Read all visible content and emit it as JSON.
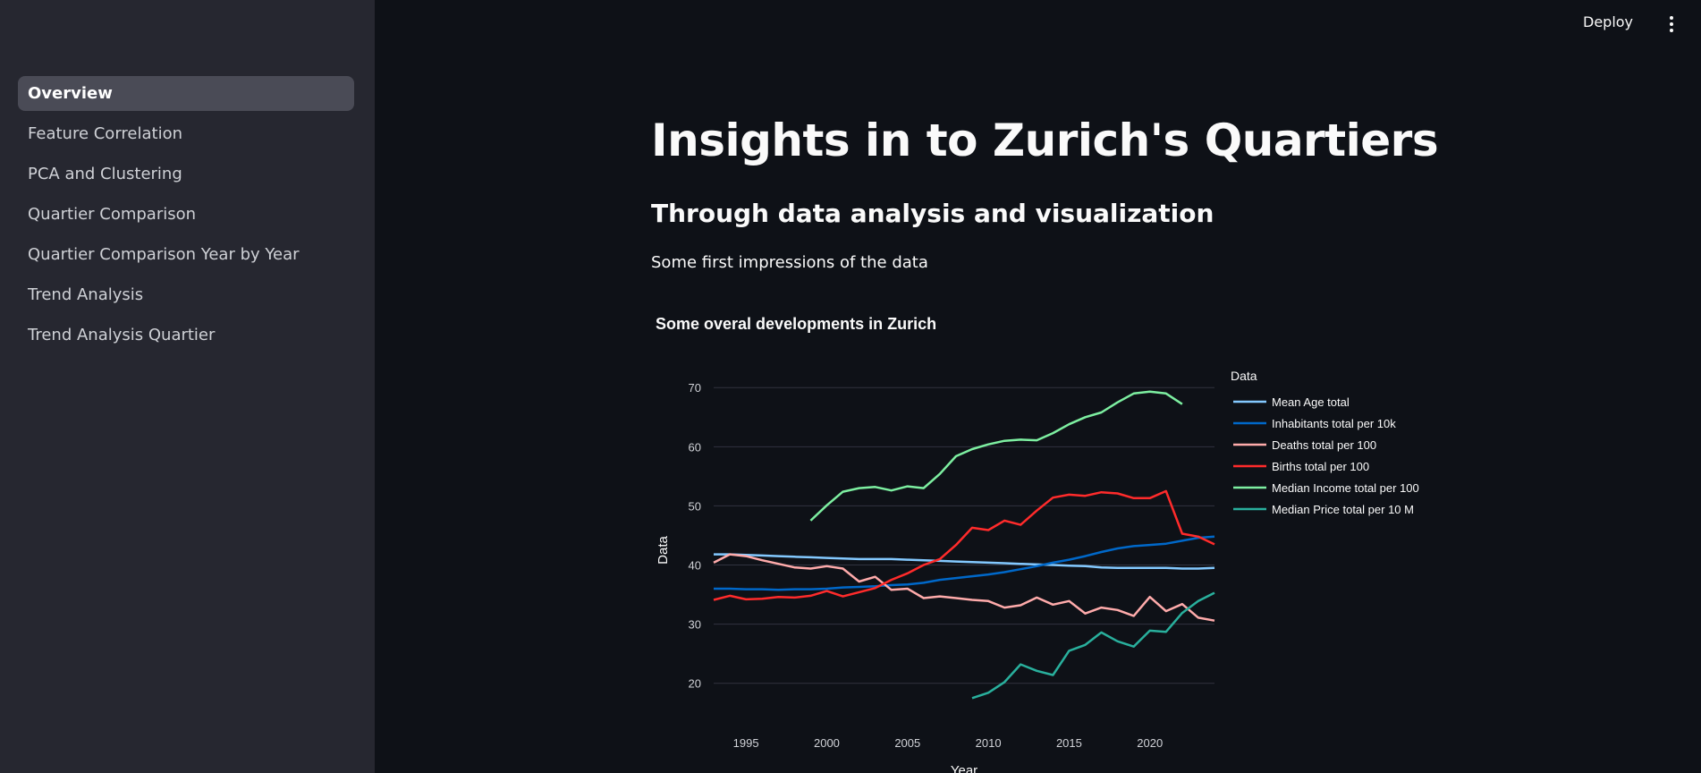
{
  "header": {
    "deploy_label": "Deploy"
  },
  "sidebar": {
    "items": [
      {
        "label": "Overview",
        "active": true
      },
      {
        "label": "Feature Correlation",
        "active": false
      },
      {
        "label": "PCA and Clustering",
        "active": false
      },
      {
        "label": "Quartier Comparison",
        "active": false
      },
      {
        "label": "Quartier Comparison Year by Year",
        "active": false
      },
      {
        "label": "Trend Analysis",
        "active": false
      },
      {
        "label": "Trend Analysis Quartier",
        "active": false
      }
    ]
  },
  "main": {
    "title": "Insights in to Zurich's Quartiers",
    "subtitle": "Through data analysis and visualization",
    "intro": "Some first impressions of the data"
  },
  "chart_data": {
    "type": "line",
    "title": "Some overal developments in Zurich",
    "xlabel": "Year",
    "ylabel": "Data",
    "legend_title": "Data",
    "legend_position": "right",
    "xlim": [
      1993,
      2024
    ],
    "ylim": [
      13,
      72
    ],
    "xticks": [
      1995,
      2000,
      2005,
      2010,
      2015,
      2020
    ],
    "yticks": [
      20,
      30,
      40,
      50,
      60,
      70
    ],
    "grid": true,
    "series": [
      {
        "name": "Mean Age total",
        "color": "#83c9ff",
        "x": [
          1993,
          1994,
          1995,
          1996,
          1997,
          1998,
          1999,
          2000,
          2001,
          2002,
          2003,
          2004,
          2005,
          2006,
          2007,
          2008,
          2009,
          2010,
          2011,
          2012,
          2013,
          2014,
          2015,
          2016,
          2017,
          2018,
          2019,
          2020,
          2021,
          2022,
          2023,
          2024
        ],
        "y": [
          41.8,
          41.8,
          41.7,
          41.6,
          41.5,
          41.4,
          41.3,
          41.2,
          41.1,
          41.0,
          41.0,
          41.0,
          40.9,
          40.8,
          40.7,
          40.6,
          40.5,
          40.4,
          40.3,
          40.2,
          40.1,
          40.0,
          39.9,
          39.8,
          39.6,
          39.5,
          39.5,
          39.5,
          39.5,
          39.4,
          39.4,
          39.5
        ]
      },
      {
        "name": "Inhabitants total per 10k",
        "color": "#0068c9",
        "x": [
          1993,
          1994,
          1995,
          1996,
          1997,
          1998,
          1999,
          2000,
          2001,
          2002,
          2003,
          2004,
          2005,
          2006,
          2007,
          2008,
          2009,
          2010,
          2011,
          2012,
          2013,
          2014,
          2015,
          2016,
          2017,
          2018,
          2019,
          2020,
          2021,
          2022,
          2023,
          2024
        ],
        "y": [
          36.0,
          36.0,
          35.9,
          35.9,
          35.8,
          35.9,
          35.9,
          36.0,
          36.2,
          36.3,
          36.4,
          36.6,
          36.7,
          37.0,
          37.5,
          37.8,
          38.1,
          38.4,
          38.8,
          39.3,
          39.8,
          40.4,
          40.9,
          41.5,
          42.2,
          42.8,
          43.2,
          43.4,
          43.6,
          44.1,
          44.6,
          44.8
        ]
      },
      {
        "name": "Deaths total per 100",
        "color": "#ffabab",
        "x": [
          1993,
          1994,
          1995,
          1996,
          1997,
          1998,
          1999,
          2000,
          2001,
          2002,
          2003,
          2004,
          2005,
          2006,
          2007,
          2008,
          2009,
          2010,
          2011,
          2012,
          2013,
          2014,
          2015,
          2016,
          2017,
          2018,
          2019,
          2020,
          2021,
          2022,
          2023,
          2024
        ],
        "y": [
          40.4,
          41.8,
          41.5,
          40.8,
          40.2,
          39.6,
          39.4,
          39.8,
          39.4,
          37.2,
          38.0,
          35.8,
          36.0,
          34.4,
          34.7,
          34.4,
          34.1,
          33.9,
          32.8,
          33.2,
          34.5,
          33.3,
          33.9,
          31.8,
          32.8,
          32.4,
          31.4,
          34.6,
          32.2,
          33.4,
          31.1,
          30.6
        ]
      },
      {
        "name": "Births total per 100",
        "color": "#ff2b2b",
        "x": [
          1993,
          1994,
          1995,
          1996,
          1997,
          1998,
          1999,
          2000,
          2001,
          2002,
          2003,
          2004,
          2005,
          2006,
          2007,
          2008,
          2009,
          2010,
          2011,
          2012,
          2013,
          2014,
          2015,
          2016,
          2017,
          2018,
          2019,
          2020,
          2021,
          2022,
          2023,
          2024
        ],
        "y": [
          34.1,
          34.8,
          34.2,
          34.3,
          34.6,
          34.5,
          34.8,
          35.6,
          34.7,
          35.4,
          36.1,
          37.5,
          38.6,
          40.0,
          41.0,
          43.4,
          46.3,
          45.9,
          47.5,
          46.8,
          49.2,
          51.4,
          51.9,
          51.7,
          52.3,
          52.1,
          51.3,
          51.3,
          52.5,
          45.3,
          44.8,
          43.5
        ]
      },
      {
        "name": "Median Income total per 100",
        "color": "#7defa1",
        "x": [
          1999,
          2000,
          2001,
          2002,
          2003,
          2004,
          2005,
          2006,
          2007,
          2008,
          2009,
          2010,
          2011,
          2012,
          2013,
          2014,
          2015,
          2016,
          2017,
          2018,
          2019,
          2020,
          2021,
          2022
        ],
        "y": [
          47.5,
          50.1,
          52.4,
          53.0,
          53.2,
          52.6,
          53.3,
          53.0,
          55.4,
          58.4,
          59.6,
          60.4,
          61.0,
          61.2,
          61.1,
          62.3,
          63.8,
          65.0,
          65.8,
          67.5,
          69.0,
          69.3,
          69.0,
          67.2
        ]
      },
      {
        "name": "Median Price total per 10 M",
        "color": "#29b09d",
        "x": [
          2009,
          2010,
          2011,
          2012,
          2013,
          2014,
          2015,
          2016,
          2017,
          2018,
          2019,
          2020,
          2021,
          2022,
          2023,
          2024
        ],
        "y": [
          17.5,
          18.4,
          20.2,
          23.2,
          22.1,
          21.4,
          25.5,
          26.5,
          28.6,
          27.1,
          26.2,
          28.9,
          28.7,
          31.9,
          33.9,
          35.3
        ]
      }
    ]
  }
}
